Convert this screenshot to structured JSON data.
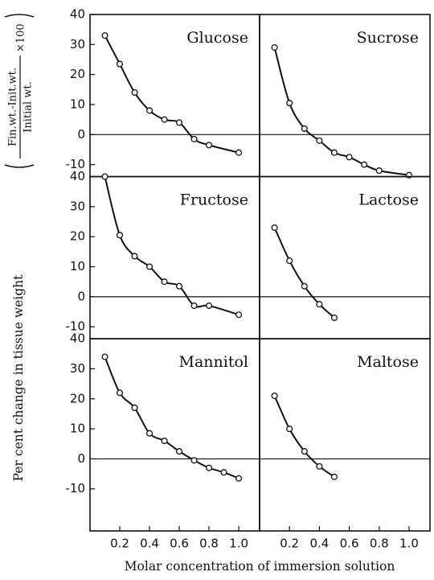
{
  "ylabel": "Per cent change in tissue weight",
  "ylabel_numerator": "Fin.wt.-Init.wt.",
  "ylabel_denominator": "Initial wt.",
  "ylabel_factor": "×100",
  "xlabel": "Molar concentration of immersion solution",
  "chart_data": [
    {
      "type": "scatter",
      "title": "Glucose",
      "x": [
        0.1,
        0.2,
        0.3,
        0.4,
        0.5,
        0.6,
        0.7,
        0.8,
        1.0
      ],
      "values": [
        33,
        23.5,
        14,
        8,
        5,
        4,
        -1.5,
        -3.5,
        -6
      ],
      "xlim": [
        0,
        1.14
      ],
      "ylim": [
        -14,
        40
      ],
      "yticks": [
        -10,
        0,
        10,
        20,
        30,
        40
      ]
    },
    {
      "type": "scatter",
      "title": "Sucrose",
      "x": [
        0.1,
        0.2,
        0.3,
        0.4,
        0.5,
        0.6,
        0.7,
        0.8,
        1.0
      ],
      "values": [
        29,
        10.5,
        2,
        -2,
        -6,
        -7.5,
        -10,
        -12,
        -13.5
      ],
      "xlim": [
        0,
        1.14
      ],
      "ylim": [
        -14,
        40
      ]
    },
    {
      "type": "scatter",
      "title": "Fructose",
      "x": [
        0.1,
        0.2,
        0.3,
        0.4,
        0.5,
        0.6,
        0.7,
        0.8,
        1.0
      ],
      "values": [
        40,
        20.5,
        13.5,
        10,
        5,
        3.5,
        -3,
        -3,
        -6
      ],
      "xlim": [
        0,
        1.14
      ],
      "ylim": [
        -14,
        40
      ],
      "yticks": [
        -10,
        0,
        10,
        20,
        30,
        40
      ]
    },
    {
      "type": "scatter",
      "title": "Lactose",
      "x": [
        0.1,
        0.2,
        0.3,
        0.4,
        0.5
      ],
      "values": [
        23,
        12,
        3.5,
        -2.5,
        -7
      ],
      "xlim": [
        0,
        1.14
      ],
      "ylim": [
        -14,
        40
      ]
    },
    {
      "type": "scatter",
      "title": "Mannitol",
      "x": [
        0.1,
        0.2,
        0.3,
        0.4,
        0.5,
        0.6,
        0.7,
        0.8,
        0.9,
        1.0
      ],
      "values": [
        34,
        22,
        17,
        8.5,
        6,
        2.5,
        -0.5,
        -3,
        -4.5,
        -6.5
      ],
      "xlim": [
        0,
        1.14
      ],
      "ylim": [
        -24,
        40
      ],
      "yticks": [
        -10,
        0,
        10,
        20,
        30,
        40
      ],
      "xticks": [
        0.2,
        0.4,
        0.6,
        0.8,
        {
          "value": 1,
          "label": "1.0"
        }
      ]
    },
    {
      "type": "scatter",
      "title": "Maltose",
      "x": [
        0.1,
        0.2,
        0.3,
        0.4,
        0.5
      ],
      "values": [
        21,
        10,
        2.5,
        -2.5,
        -6
      ],
      "xlim": [
        0,
        1.14
      ],
      "ylim": [
        -24,
        40
      ],
      "xticks": [
        0.2,
        0.4,
        0.6,
        0.8,
        {
          "value": 1,
          "label": "1.0"
        }
      ]
    }
  ]
}
